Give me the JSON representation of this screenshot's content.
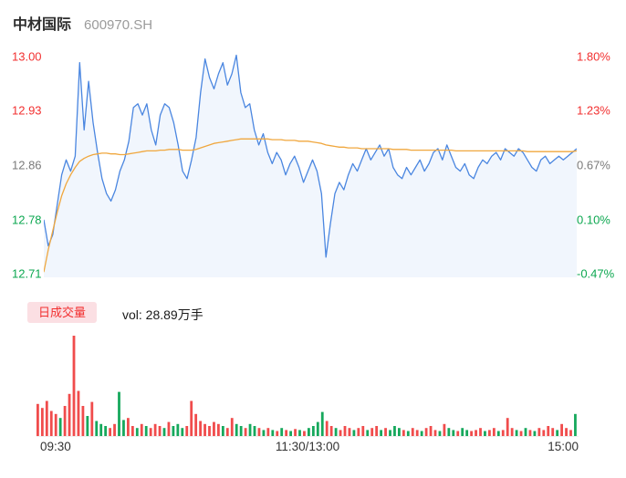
{
  "header": {
    "name": "中材国际",
    "code": "600970.SH"
  },
  "colors": {
    "up": "#F23030",
    "down": "#0CA750",
    "neutral": "#7A7A7A",
    "price_line": "#4A86E0",
    "avg_line": "#F0A73E",
    "area_fill": "rgba(74,134,224,0.08)",
    "vol_up": "#F04C4C",
    "vol_down": "#16A85C",
    "badge_bg": "#FBDFE3",
    "badge_text": "#F23030"
  },
  "axes": {
    "left": [
      {
        "text": "13.00",
        "color": "#F23030"
      },
      {
        "text": "12.93",
        "color": "#F23030"
      },
      {
        "text": "12.86",
        "color": "#7A7A7A"
      },
      {
        "text": "12.78",
        "color": "#0CA750"
      },
      {
        "text": "12.71",
        "color": "#0CA750"
      }
    ],
    "right": [
      {
        "text": "1.80%",
        "color": "#F23030"
      },
      {
        "text": "1.23%",
        "color": "#F23030"
      },
      {
        "text": "0.67%",
        "color": "#7A7A7A"
      },
      {
        "text": "0.10%",
        "color": "#0CA750"
      },
      {
        "text": "-0.47%",
        "color": "#0CA750"
      }
    ],
    "time": [
      "09:30",
      "11:30/13:00",
      "15:00"
    ]
  },
  "volume_header": {
    "tab": "日成交量",
    "label": "vol: 28.89万手"
  },
  "chart_data": {
    "type": "line",
    "title": "中材国际 600970.SH 分时图",
    "xlabel": "",
    "ylabel": "",
    "x_ticks": [
      "09:30",
      "11:30/13:00",
      "15:00"
    ],
    "x_range": [
      "09:30",
      "15:00"
    ],
    "ylim": [
      12.703,
      13.003
    ],
    "y_left_ticks": [
      13.0,
      12.93,
      12.86,
      12.78,
      12.71
    ],
    "y_right_ticks": [
      "1.80%",
      "1.23%",
      "0.67%",
      "0.10%",
      "-0.47%"
    ],
    "grid": false,
    "legend": "none",
    "series": [
      {
        "name": "price",
        "color": "#4A86E0",
        "values": [
          12.78,
          12.745,
          12.76,
          12.8,
          12.84,
          12.86,
          12.845,
          12.865,
          12.99,
          12.9,
          12.965,
          12.91,
          12.87,
          12.835,
          12.815,
          12.805,
          12.82,
          12.845,
          12.86,
          12.885,
          12.93,
          12.935,
          12.92,
          12.935,
          12.9,
          12.88,
          12.92,
          12.935,
          12.93,
          12.91,
          12.88,
          12.845,
          12.835,
          12.86,
          12.89,
          12.95,
          12.995,
          12.97,
          12.955,
          12.975,
          12.99,
          12.96,
          12.975,
          13.0,
          12.95,
          12.93,
          12.935,
          12.9,
          12.88,
          12.895,
          12.87,
          12.855,
          12.87,
          12.86,
          12.84,
          12.855,
          12.865,
          12.85,
          12.83,
          12.845,
          12.86,
          12.845,
          12.815,
          12.73,
          12.775,
          12.815,
          12.83,
          12.82,
          12.84,
          12.855,
          12.845,
          12.86,
          12.875,
          12.86,
          12.87,
          12.88,
          12.865,
          12.875,
          12.85,
          12.84,
          12.835,
          12.85,
          12.84,
          12.85,
          12.86,
          12.845,
          12.855,
          12.87,
          12.875,
          12.86,
          12.88,
          12.865,
          12.85,
          12.845,
          12.855,
          12.84,
          12.835,
          12.85,
          12.86,
          12.855,
          12.865,
          12.87,
          12.86,
          12.875,
          12.87,
          12.865,
          12.875,
          12.87,
          12.86,
          12.85,
          12.845,
          12.86,
          12.865,
          12.855,
          12.86,
          12.865,
          12.86,
          12.865,
          12.87,
          12.875
        ]
      },
      {
        "name": "avg_price",
        "color": "#F0A73E",
        "values": [
          12.71,
          12.74,
          12.765,
          12.79,
          12.812,
          12.828,
          12.84,
          12.85,
          12.858,
          12.862,
          12.865,
          12.867,
          12.868,
          12.869,
          12.869,
          12.868,
          12.868,
          12.867,
          12.867,
          12.868,
          12.869,
          12.87,
          12.871,
          12.872,
          12.872,
          12.872,
          12.873,
          12.873,
          12.874,
          12.874,
          12.874,
          12.873,
          12.873,
          12.873,
          12.874,
          12.876,
          12.878,
          12.88,
          12.882,
          12.883,
          12.884,
          12.885,
          12.886,
          12.887,
          12.888,
          12.888,
          12.888,
          12.888,
          12.888,
          12.888,
          12.888,
          12.887,
          12.887,
          12.887,
          12.886,
          12.886,
          12.886,
          12.885,
          12.885,
          12.885,
          12.884,
          12.883,
          12.882,
          12.88,
          12.879,
          12.878,
          12.877,
          12.877,
          12.876,
          12.876,
          12.876,
          12.875,
          12.875,
          12.875,
          12.875,
          12.875,
          12.875,
          12.875,
          12.874,
          12.874,
          12.874,
          12.874,
          12.873,
          12.873,
          12.873,
          12.873,
          12.873,
          12.873,
          12.873,
          12.873,
          12.873,
          12.873,
          12.872,
          12.872,
          12.872,
          12.872,
          12.872,
          12.872,
          12.872,
          12.872,
          12.872,
          12.872,
          12.872,
          12.872,
          12.872,
          12.872,
          12.872,
          12.872,
          12.871,
          12.871,
          12.871,
          12.871,
          12.871,
          12.871,
          12.871,
          12.871,
          12.871,
          12.871,
          12.871,
          12.872
        ]
      }
    ],
    "volume": {
      "legend": "日成交量",
      "total_label": "vol: 28.89万手",
      "vmax": 100,
      "up_color": "#F04C4C",
      "down_color": "#16A85C",
      "bars": [
        [
          32,
          "u"
        ],
        [
          28,
          "u"
        ],
        [
          35,
          "u"
        ],
        [
          25,
          "u"
        ],
        [
          22,
          "u"
        ],
        [
          18,
          "d"
        ],
        [
          30,
          "u"
        ],
        [
          42,
          "u"
        ],
        [
          100,
          "u"
        ],
        [
          45,
          "u"
        ],
        [
          30,
          "u"
        ],
        [
          20,
          "d"
        ],
        [
          34,
          "u"
        ],
        [
          15,
          "d"
        ],
        [
          12,
          "d"
        ],
        [
          10,
          "d"
        ],
        [
          8,
          "u"
        ],
        [
          12,
          "u"
        ],
        [
          44,
          "d"
        ],
        [
          16,
          "d"
        ],
        [
          18,
          "u"
        ],
        [
          10,
          "u"
        ],
        [
          8,
          "d"
        ],
        [
          12,
          "u"
        ],
        [
          10,
          "d"
        ],
        [
          8,
          "u"
        ],
        [
          12,
          "u"
        ],
        [
          10,
          "u"
        ],
        [
          8,
          "d"
        ],
        [
          14,
          "u"
        ],
        [
          10,
          "d"
        ],
        [
          12,
          "d"
        ],
        [
          8,
          "d"
        ],
        [
          10,
          "u"
        ],
        [
          35,
          "u"
        ],
        [
          22,
          "u"
        ],
        [
          15,
          "u"
        ],
        [
          12,
          "u"
        ],
        [
          10,
          "u"
        ],
        [
          14,
          "u"
        ],
        [
          12,
          "u"
        ],
        [
          10,
          "d"
        ],
        [
          8,
          "u"
        ],
        [
          18,
          "u"
        ],
        [
          12,
          "d"
        ],
        [
          10,
          "d"
        ],
        [
          8,
          "u"
        ],
        [
          12,
          "d"
        ],
        [
          10,
          "d"
        ],
        [
          8,
          "u"
        ],
        [
          6,
          "d"
        ],
        [
          8,
          "u"
        ],
        [
          6,
          "d"
        ],
        [
          5,
          "u"
        ],
        [
          8,
          "d"
        ],
        [
          6,
          "u"
        ],
        [
          5,
          "d"
        ],
        [
          7,
          "u"
        ],
        [
          6,
          "d"
        ],
        [
          5,
          "u"
        ],
        [
          8,
          "d"
        ],
        [
          10,
          "d"
        ],
        [
          14,
          "d"
        ],
        [
          24,
          "d"
        ],
        [
          15,
          "u"
        ],
        [
          10,
          "u"
        ],
        [
          8,
          "d"
        ],
        [
          6,
          "u"
        ],
        [
          10,
          "u"
        ],
        [
          8,
          "u"
        ],
        [
          6,
          "d"
        ],
        [
          8,
          "u"
        ],
        [
          10,
          "u"
        ],
        [
          6,
          "d"
        ],
        [
          8,
          "u"
        ],
        [
          10,
          "u"
        ],
        [
          6,
          "d"
        ],
        [
          8,
          "u"
        ],
        [
          6,
          "d"
        ],
        [
          10,
          "d"
        ],
        [
          8,
          "d"
        ],
        [
          6,
          "u"
        ],
        [
          5,
          "d"
        ],
        [
          8,
          "u"
        ],
        [
          6,
          "u"
        ],
        [
          5,
          "d"
        ],
        [
          8,
          "u"
        ],
        [
          10,
          "u"
        ],
        [
          6,
          "u"
        ],
        [
          5,
          "d"
        ],
        [
          12,
          "u"
        ],
        [
          8,
          "d"
        ],
        [
          6,
          "d"
        ],
        [
          5,
          "u"
        ],
        [
          8,
          "d"
        ],
        [
          6,
          "d"
        ],
        [
          5,
          "u"
        ],
        [
          6,
          "u"
        ],
        [
          8,
          "u"
        ],
        [
          5,
          "d"
        ],
        [
          6,
          "u"
        ],
        [
          8,
          "u"
        ],
        [
          5,
          "d"
        ],
        [
          6,
          "u"
        ],
        [
          18,
          "u"
        ],
        [
          8,
          "u"
        ],
        [
          6,
          "d"
        ],
        [
          5,
          "u"
        ],
        [
          8,
          "d"
        ],
        [
          6,
          "u"
        ],
        [
          5,
          "d"
        ],
        [
          8,
          "u"
        ],
        [
          6,
          "u"
        ],
        [
          10,
          "u"
        ],
        [
          8,
          "u"
        ],
        [
          6,
          "d"
        ],
        [
          12,
          "u"
        ],
        [
          8,
          "u"
        ],
        [
          6,
          "u"
        ],
        [
          22,
          "d"
        ]
      ]
    }
  }
}
